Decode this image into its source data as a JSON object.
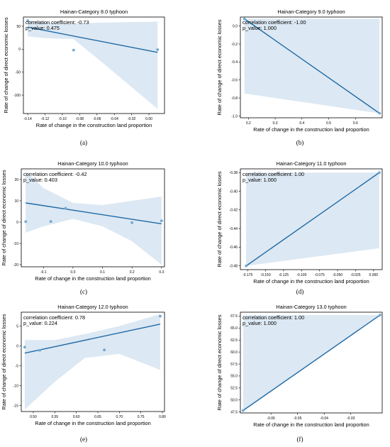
{
  "colors": {
    "line": "#1f6aa5",
    "band": "#dce8f3",
    "point": "#6fa8d6"
  },
  "chart_data": [
    {
      "type": "scatter",
      "title": "Hainan-Category 8.0 typhoon",
      "xlabel": "Rate of change in the construction land proportion",
      "ylabel": "Rate of change of direct economic losses",
      "annotation": [
        "correlation coefficient: -0.73",
        "p_value: 0.475"
      ],
      "caption": "(a)",
      "xlim": [
        -0.145,
        0.018
      ],
      "ylim": [
        -140,
        70
      ],
      "xticks": [
        -0.14,
        -0.12,
        -0.1,
        -0.08,
        -0.06,
        -0.04,
        -0.02,
        0.0
      ],
      "xtick_labels": [
        "-0.14",
        "-0.12",
        "-0.10",
        "-0.08",
        "-0.06",
        "-0.04",
        "-0.02",
        "0.00"
      ],
      "yticks": [
        -100,
        -50,
        0,
        50
      ],
      "ytick_labels": [
        "-100",
        "-50",
        "0",
        "50"
      ],
      "points": [
        [
          -0.14,
          62
        ],
        [
          -0.087,
          -2
        ],
        [
          0.01,
          -1
        ]
      ],
      "fit": [
        [
          -0.14,
          48
        ],
        [
          0.01,
          -7
        ]
      ],
      "band_upper": [
        [
          -0.14,
          62
        ],
        [
          -0.12,
          58
        ],
        [
          -0.087,
          56
        ],
        [
          -0.05,
          58
        ],
        [
          0.01,
          60
        ]
      ],
      "band_lower": [
        [
          -0.14,
          28
        ],
        [
          -0.12,
          24
        ],
        [
          -0.087,
          22
        ],
        [
          -0.05,
          -35
        ],
        [
          0.01,
          -130
        ]
      ]
    },
    {
      "type": "scatter",
      "title": "Hainan-Category 9.0 typhoon",
      "xlabel": "Rate of change in the construction land proportion",
      "ylabel": "Rate of change of direct economic losses",
      "annotation": [
        "correlation coefficient: -1.00",
        "p_value: 1.000"
      ],
      "caption": "(b)",
      "xlim": [
        0.17,
        0.7
      ],
      "ylim": [
        -1.02,
        0.1
      ],
      "xticks": [
        0.2,
        0.3,
        0.4,
        0.5,
        0.6
      ],
      "xtick_labels": [
        "0.2",
        "0.3",
        "0.4",
        "0.5",
        "0.6"
      ],
      "yticks": [
        -1.0,
        -0.8,
        -0.6,
        -0.4,
        -0.2,
        0.0
      ],
      "ytick_labels": [
        "-1.0",
        "-0.8",
        "-0.6",
        "-0.4",
        "-0.2",
        "0.0"
      ],
      "points": [
        [
          0.185,
          0.08
        ],
        [
          0.69,
          -0.97
        ]
      ],
      "fit": [
        [
          0.185,
          0.08
        ],
        [
          0.69,
          -0.97
        ]
      ],
      "band_upper": [
        [
          0.185,
          0.08
        ],
        [
          0.69,
          0.08
        ]
      ],
      "band_lower": [
        [
          0.185,
          -0.75
        ],
        [
          0.69,
          -0.97
        ]
      ]
    },
    {
      "type": "scatter",
      "title": "Hainan-Category 10.0 typhoon",
      "xlabel": "Rate of change in the construction land proportion",
      "ylabel": "Rate of change of direct economic losses",
      "annotation": [
        "correlation coefficient: -0.42",
        "p_value: 0.403"
      ],
      "caption": "(c)",
      "xlim": [
        -0.175,
        0.31
      ],
      "ylim": [
        -21,
        25
      ],
      "xticks": [
        -0.1,
        0.0,
        0.1,
        0.2,
        0.3
      ],
      "xtick_labels": [
        "-0.1",
        "0.0",
        "0.1",
        "0.2",
        "0.3"
      ],
      "yticks": [
        -20,
        -10,
        0,
        10,
        20
      ],
      "ytick_labels": [
        "-20",
        "-10",
        "0",
        "10",
        "20"
      ],
      "points": [
        [
          -0.16,
          0.2
        ],
        [
          -0.075,
          0.3
        ],
        [
          -0.025,
          6.5
        ],
        [
          0.2,
          -0.3
        ],
        [
          0.3,
          0.6
        ]
      ],
      "fit": [
        [
          -0.16,
          9
        ],
        [
          0.3,
          -0.8
        ]
      ],
      "band_upper": [
        [
          -0.16,
          24
        ],
        [
          -0.1,
          16
        ],
        [
          0.0,
          9
        ],
        [
          0.1,
          8
        ],
        [
          0.2,
          10
        ],
        [
          0.3,
          12
        ]
      ],
      "band_lower": [
        [
          -0.16,
          -5
        ],
        [
          -0.1,
          -2
        ],
        [
          0.0,
          1.5
        ],
        [
          0.1,
          -2
        ],
        [
          0.2,
          -9
        ],
        [
          0.3,
          -20
        ]
      ]
    },
    {
      "type": "scatter",
      "title": "Hainan-Category 11.0 typhoon",
      "xlabel": "Rate of change in the construction land proportion",
      "ylabel": "Rate of change of direct economic losses",
      "annotation": [
        "correlation coefficient: 1.00",
        "p_value: 1.000"
      ],
      "caption": "(d)",
      "xlim": [
        -0.185,
        0.012
      ],
      "ylim": [
        -0.484,
        -0.376
      ],
      "xticks": [
        -0.175,
        -0.15,
        -0.125,
        -0.1,
        -0.075,
        -0.05,
        -0.025,
        0.0
      ],
      "xtick_labels": [
        "-0.175",
        "-0.150",
        "-0.125",
        "-0.100",
        "-0.075",
        "-0.050",
        "-0.025",
        "0.000"
      ],
      "yticks": [
        -0.48,
        -0.46,
        -0.44,
        -0.42,
        -0.4,
        -0.38
      ],
      "ytick_labels": [
        "-0.48",
        "-0.46",
        "-0.44",
        "-0.42",
        "-0.40",
        "-0.38"
      ],
      "points": [
        [
          -0.177,
          -0.48
        ],
        [
          0.008,
          -0.38
        ]
      ],
      "fit": [
        [
          -0.177,
          -0.48
        ],
        [
          0.008,
          -0.38
        ]
      ],
      "band_upper": [
        [
          -0.177,
          -0.38
        ],
        [
          0.008,
          -0.38
        ]
      ],
      "band_lower": [
        [
          -0.177,
          -0.48
        ],
        [
          0.008,
          -0.461
        ]
      ]
    },
    {
      "type": "scatter",
      "title": "Hainan-Category 12.0 typhoon",
      "xlabel": "Rate of change in the construction land proportion",
      "ylabel": "Rate of change of direct economic losses",
      "annotation": [
        "correlation coefficient: 0.78",
        "p_value: 0.224"
      ],
      "caption": "(e)",
      "xlim": [
        0.472,
        0.805
      ],
      "ylim": [
        -16.5,
        8.5
      ],
      "xticks": [
        0.5,
        0.55,
        0.6,
        0.65,
        0.7,
        0.75,
        0.8
      ],
      "xtick_labels": [
        "0.50",
        "0.55",
        "0.60",
        "0.65",
        "0.70",
        "0.75",
        "0.80"
      ],
      "yticks": [
        -15,
        -10,
        -5,
        0,
        5
      ],
      "ytick_labels": [
        "-15",
        "-10",
        "-5",
        "0",
        "5"
      ],
      "points": [
        [
          0.48,
          -0.3
        ],
        [
          0.515,
          -1.1
        ],
        [
          0.665,
          -1.0
        ],
        [
          0.795,
          7.5
        ]
      ],
      "fit": [
        [
          0.48,
          -1.8
        ],
        [
          0.795,
          5.5
        ]
      ],
      "band_upper": [
        [
          0.48,
          1.5
        ],
        [
          0.55,
          1.5
        ],
        [
          0.62,
          3
        ],
        [
          0.7,
          5
        ],
        [
          0.795,
          8
        ]
      ],
      "band_lower": [
        [
          0.48,
          -16
        ],
        [
          0.55,
          -9
        ],
        [
          0.62,
          -3
        ],
        [
          0.7,
          -2
        ],
        [
          0.795,
          -6
        ]
      ]
    },
    {
      "type": "scatter",
      "title": "Hainan-Category 13.0 typhoon",
      "xlabel": "Rate of change in the construction land proportion",
      "ylabel": "Rate of change of direct economic losses",
      "annotation": [
        "correlation coefficient: 1.00",
        "p_value: 1.000"
      ],
      "caption": "(f)",
      "xlim": [
        -0.0715,
        -0.0182
      ],
      "ylim": [
        47.3,
        68.3
      ],
      "xticks": [
        -0.06,
        -0.05,
        -0.04,
        -0.03
      ],
      "xtick_labels": [
        "-0.06",
        "-0.05",
        "-0.04",
        "-0.03"
      ],
      "yticks": [
        47.5,
        50.0,
        52.5,
        55.0,
        57.5,
        60.0,
        62.5,
        65.0,
        67.5
      ],
      "ytick_labels": [
        "47.5",
        "50.0",
        "52.5",
        "55.0",
        "57.5",
        "60.0",
        "62.5",
        "65.0",
        "67.5"
      ],
      "points": [
        [
          -0.0705,
          47.8
        ],
        [
          -0.019,
          67.7
        ]
      ],
      "fit": [
        [
          -0.0705,
          47.8
        ],
        [
          -0.019,
          67.7
        ]
      ],
      "band_upper": [
        [
          -0.0705,
          67.7
        ],
        [
          -0.019,
          67.7
        ]
      ],
      "band_lower": [
        [
          -0.0705,
          47.8
        ],
        [
          -0.019,
          67.7
        ]
      ]
    }
  ]
}
